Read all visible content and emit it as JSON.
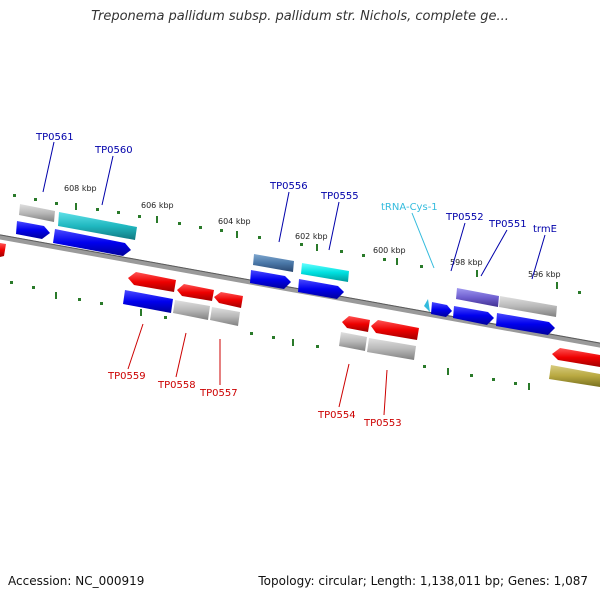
{
  "title": "Treponema pallidum subsp. pallidum str. Nichols, complete ge...",
  "footer": {
    "accession": "Accession: NC_000919",
    "summary": "Topology: circular; Length: 1,138,011 bp; Genes: 1,087"
  },
  "colors": {
    "backbone": "#808080",
    "blue_gene": "#0000ee",
    "red_gene": "#ee0000",
    "gray_gene": "#b0b0b0",
    "cyan_gene": "#00d8d8",
    "teal_gene": "#20b8c0",
    "steel_gene": "#4a78a8",
    "purple_gene": "#7060d0",
    "olive_gene": "#b8a840",
    "tick_major": "#2a7a2a",
    "tick_minor": "#2a7a2a",
    "label_blue": "#0000aa",
    "label_red": "#cc0000",
    "label_cyan": "#33bbdd"
  },
  "scale_labels": [
    "608 kbp",
    "606 kbp",
    "604 kbp",
    "602 kbp",
    "600 kbp",
    "598 kbp",
    "596 kbp"
  ],
  "upper_labels": [
    "TP0561",
    "TP0560",
    "TP0556",
    "TP0555",
    "tRNA-Cys-1",
    "TP0552",
    "TP0551",
    "trmE"
  ],
  "lower_labels": [
    "TP0559",
    "TP0558",
    "TP0557",
    "TP0554",
    "TP0553"
  ]
}
